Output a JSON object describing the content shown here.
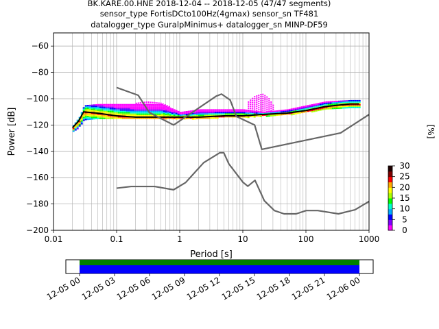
{
  "title_lines": [
    "BK.KARE.00.HNE   2018-12-04 -- 2018-12-05  (47/47 segments)",
    "sensor_type FortisDCto100Hz(4gmax) sensor_sn TF481",
    "datalogger_type GuralpMinimus+ datalogger_sn MINP-DF59"
  ],
  "chart_data": [
    {
      "type": "line",
      "title": "BK.KARE.00.HNE   2018-12-04 -- 2018-12-05  (47/47 segments)",
      "xlabel": "Period [s]",
      "ylabel": "Power [dB]",
      "xscale": "log",
      "xlim": [
        0.01,
        1000
      ],
      "ylim": [
        -200,
        -50
      ],
      "x_ticks": [
        0.01,
        0.1,
        1,
        10,
        100,
        1000
      ],
      "x_tick_labels": [
        "0.01",
        "0.1",
        "1",
        "10",
        "100",
        "1000"
      ],
      "y_ticks": [
        -200,
        -180,
        -160,
        -140,
        -120,
        -100,
        -80,
        -60
      ],
      "y_tick_labels": [
        "−200",
        "−180",
        "−160",
        "−140",
        "−120",
        "−100",
        "−80",
        "−60"
      ],
      "grid": true,
      "noise_models": [
        {
          "color": "#666666",
          "x": [
            0.1,
            0.22,
            0.33,
            0.8,
            3.8,
            4.6,
            6.3,
            7.9,
            15.4,
            20,
            354.8,
            1000
          ],
          "y": [
            -91.5,
            -97.4,
            -110.5,
            -120,
            -98,
            -96.5,
            -101,
            -113.5,
            -120,
            -138.5,
            -126,
            -112
          ]
        },
        {
          "color": "#666666",
          "x": [
            0.1,
            0.17,
            0.4,
            0.8,
            1.24,
            2.4,
            4.3,
            5,
            6,
            10,
            12,
            15.6,
            21.9,
            31.6,
            45,
            70,
            101,
            154,
            328,
            600,
            1000
          ],
          "y": [
            -168,
            -166.7,
            -166.7,
            -169.2,
            -163.7,
            -148.6,
            -141.1,
            -141.1,
            -149.5,
            -163.4,
            -166.5,
            -162,
            -177.5,
            -185,
            -187.5,
            -187.5,
            -185,
            -185,
            -187.5,
            -184.4,
            -178
          ]
        }
      ],
      "mode_line": {
        "color": "#000000",
        "x": [
          0.02,
          0.025,
          0.03,
          0.05,
          0.1,
          0.2,
          0.5,
          1,
          2,
          5,
          10,
          20,
          50,
          100,
          200,
          500,
          700
        ],
        "y": [
          -122,
          -117,
          -110,
          -111,
          -113,
          -114,
          -114,
          -114,
          -114,
          -113,
          -113,
          -112,
          -111,
          -109,
          -106,
          -104,
          -104
        ]
      },
      "psd_top_band": {
        "x": [
          0.02,
          0.025,
          0.03,
          0.05,
          0.1,
          0.2,
          0.5,
          1,
          2,
          5,
          10,
          20,
          50,
          100,
          200,
          500,
          700
        ],
        "y": [
          -120,
          -114,
          -105,
          -104,
          -104,
          -104,
          -104,
          -110,
          -108,
          -108,
          -108,
          -110,
          -108,
          -105,
          -102,
          -101,
          -101
        ]
      },
      "psd_bottom_band": {
        "x": [
          0.02,
          0.025,
          0.03,
          0.05,
          0.1,
          0.2,
          0.5,
          1,
          2,
          5,
          10,
          20,
          50,
          100,
          200,
          500,
          700
        ],
        "y": [
          -125,
          -121,
          -116,
          -115,
          -115,
          -115,
          -115,
          -115,
          -115,
          -114,
          -114,
          -113,
          -112,
          -110,
          -108,
          -107,
          -107
        ]
      },
      "psd_outlier_tops": [
        {
          "x": [
            0.2,
            0.3,
            0.5,
            0.7
          ],
          "y": [
            -103,
            -102,
            -103,
            -106
          ]
        },
        {
          "x": [
            12,
            15,
            20,
            25,
            30
          ],
          "y": [
            -102,
            -98,
            -96,
            -99,
            -105
          ]
        }
      ]
    },
    {
      "type": "heatmap",
      "name": "colorbar",
      "label": "[%]",
      "ticks": [
        0,
        5,
        10,
        15,
        20,
        25,
        30
      ],
      "tick_labels": [
        "0",
        "5",
        "10",
        "15",
        "20",
        "25",
        "30"
      ],
      "range": [
        0,
        30
      ],
      "colormap": [
        "#ffffff",
        "#ff00ff",
        "#8000ff",
        "#0000ff",
        "#00aaff",
        "#00ffcc",
        "#00ff00",
        "#aaff00",
        "#ffff00",
        "#ffaa00",
        "#ff0000",
        "#800000",
        "#200000"
      ]
    },
    {
      "type": "bar",
      "name": "data-availability",
      "x_tick_labels": [
        "12-05 00",
        "12-05 03",
        "12-05 06",
        "12-05 09",
        "12-05 12",
        "12-05 15",
        "12-05 18",
        "12-05 21",
        "12-06 00"
      ],
      "colors": [
        "#008000",
        "#0000ff"
      ]
    }
  ]
}
